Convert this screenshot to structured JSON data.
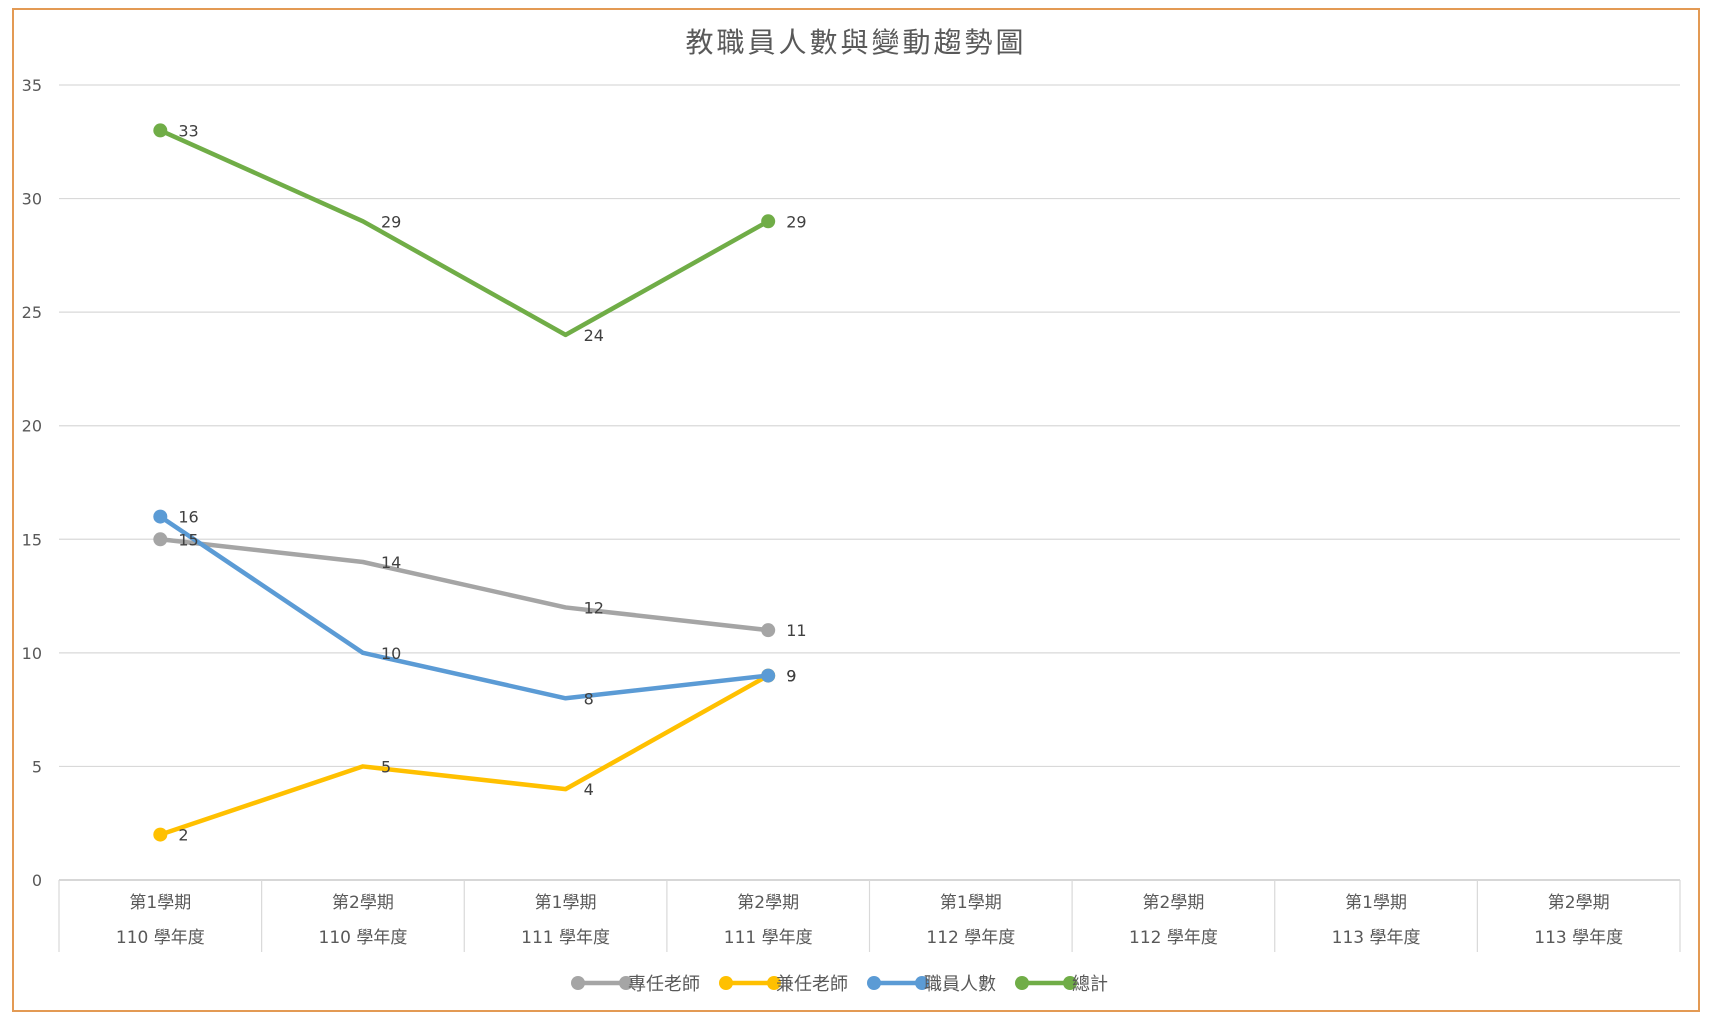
{
  "chart_data": {
    "type": "line",
    "title": "教職員人數與變動趨勢圖",
    "xlabel": "",
    "ylabel": "",
    "ylim": [
      0,
      35
    ],
    "yticks": [
      0,
      5,
      10,
      15,
      20,
      25,
      30,
      35
    ],
    "grid": true,
    "legend_position": "bottom",
    "categories": [
      {
        "semester": "第1學期",
        "year": "110 學年度"
      },
      {
        "semester": "第2學期",
        "year": "110 學年度"
      },
      {
        "semester": "第1學期",
        "year": "111 學年度"
      },
      {
        "semester": "第2學期",
        "year": "111 學年度"
      },
      {
        "semester": "第1學期",
        "year": "112 學年度"
      },
      {
        "semester": "第2學期",
        "year": "112 學年度"
      },
      {
        "semester": "第1學期",
        "year": "113 學年度"
      },
      {
        "semester": "第2學期",
        "year": "113 學年度"
      }
    ],
    "series": [
      {
        "name": "專任老師",
        "color": "#a5a5a5",
        "values": [
          15,
          14,
          12,
          11,
          null,
          null,
          null,
          null
        ]
      },
      {
        "name": "兼任老師",
        "color": "#ffc000",
        "values": [
          2,
          5,
          4,
          9,
          null,
          null,
          null,
          null
        ]
      },
      {
        "name": "職員人數",
        "color": "#5b9bd5",
        "values": [
          16,
          10,
          8,
          9,
          null,
          null,
          null,
          null
        ]
      },
      {
        "name": "總計",
        "color": "#70ad47",
        "values": [
          33,
          29,
          24,
          29,
          null,
          null,
          null,
          null
        ]
      }
    ]
  }
}
